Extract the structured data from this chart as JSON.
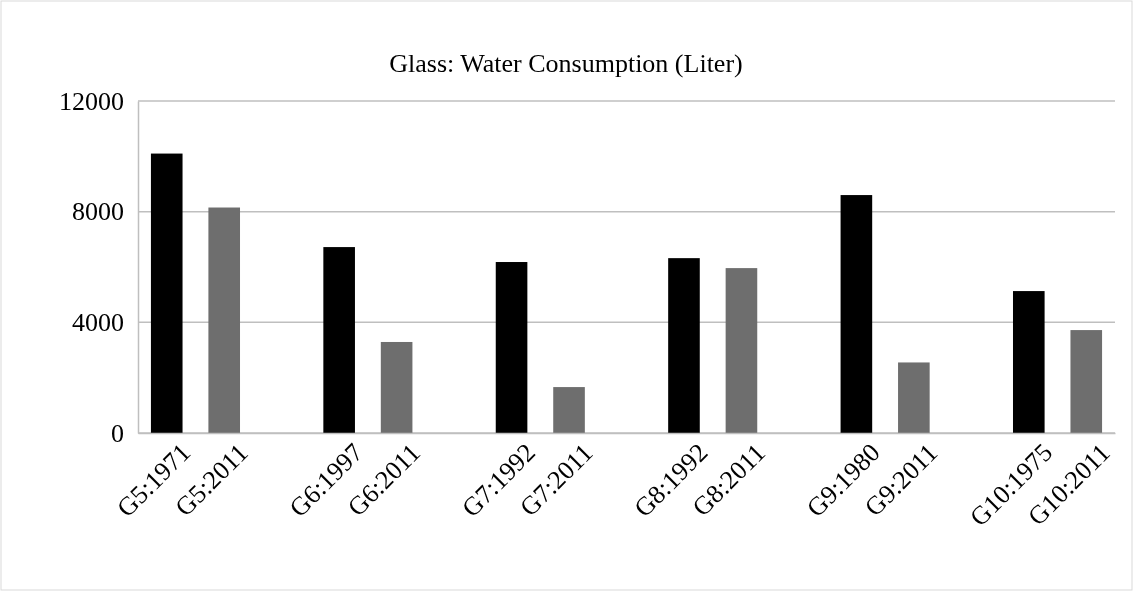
{
  "chart_data": {
    "type": "bar",
    "title": "Glass: Water Consumption (Liter)",
    "categories": [
      "G5:1971",
      "G5:2011",
      null,
      "G6:1997",
      "G6:2011",
      null,
      "G7:1992",
      "G7:2011",
      null,
      "G8:1992",
      "G8:2011",
      null,
      "G9:1980",
      "G9:2011",
      null,
      "G10:1975",
      "G10:2011"
    ],
    "values": [
      10100,
      8150,
      null,
      6720,
      3290,
      null,
      6180,
      1660,
      null,
      6320,
      5960,
      null,
      8600,
      2550,
      null,
      5130,
      3720
    ],
    "colors": [
      "#000000",
      "#6e6e6e",
      null,
      "#000000",
      "#6e6e6e",
      null,
      "#000000",
      "#6e6e6e",
      null,
      "#000000",
      "#6e6e6e",
      null,
      "#000000",
      "#6e6e6e",
      null,
      "#000000",
      "#6e6e6e"
    ],
    "ylim": [
      0,
      12000
    ],
    "yticks": [
      0,
      4000,
      8000,
      12000
    ],
    "grid": "y"
  }
}
